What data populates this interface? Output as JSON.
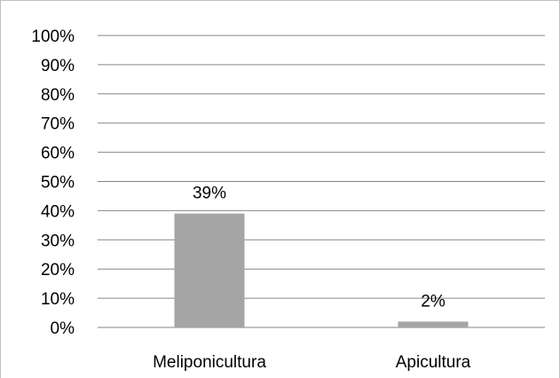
{
  "chart_data": {
    "type": "bar",
    "categories": [
      "Meliponicultura",
      "Apicultura"
    ],
    "values": [
      39,
      2
    ],
    "data_labels": [
      "39%",
      "2%"
    ],
    "ylim": [
      0,
      100
    ],
    "yticks": [
      0,
      10,
      20,
      30,
      40,
      50,
      60,
      70,
      80,
      90,
      100
    ],
    "ytick_labels": [
      "0%",
      "10%",
      "20%",
      "30%",
      "40%",
      "50%",
      "60%",
      "70%",
      "80%",
      "90%",
      "100%"
    ],
    "grid": true,
    "legend": "none",
    "bar_color": "#a5a5a5",
    "grid_color": "#868686",
    "title": "",
    "xlabel": "",
    "ylabel": ""
  }
}
